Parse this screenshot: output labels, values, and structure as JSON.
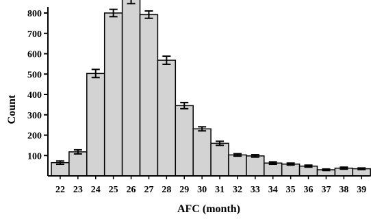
{
  "chart_data": {
    "type": "bar",
    "title": "",
    "xlabel": "AFC (month)",
    "ylabel": "Count",
    "categories": [
      "22",
      "23",
      "24",
      "25",
      "26",
      "27",
      "28",
      "29",
      "30",
      "31",
      "32",
      "33",
      "34",
      "35",
      "36",
      "37",
      "38",
      "39"
    ],
    "values": [
      65,
      118,
      503,
      800,
      868,
      792,
      568,
      345,
      231,
      160,
      103,
      98,
      63,
      58,
      48,
      30,
      38,
      35
    ],
    "errors": [
      8,
      10,
      20,
      18,
      22,
      18,
      20,
      15,
      10,
      10,
      6,
      6,
      6,
      5,
      5,
      4,
      5,
      4
    ],
    "yticks": [
      100,
      200,
      300,
      400,
      500,
      600,
      700,
      800
    ],
    "ylim": [
      0,
      1000
    ],
    "grid": false,
    "colors": {
      "bar_fill": "#d3d3d3",
      "bar_stroke": "#000000",
      "axis": "#000000"
    }
  }
}
